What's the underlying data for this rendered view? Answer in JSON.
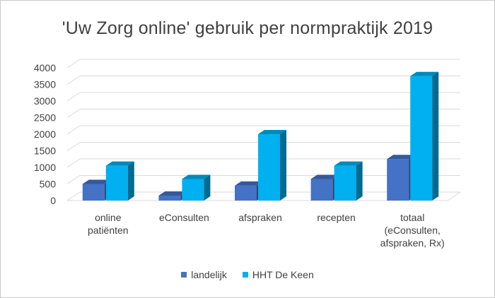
{
  "chart_data": {
    "type": "bar",
    "title": "'Uw Zorg online' gebruik per normpraktijk 2019",
    "categories": [
      [
        "online",
        "patiënten"
      ],
      [
        "eConsulten"
      ],
      [
        "afspraken"
      ],
      [
        "recepten"
      ],
      [
        "totaal",
        "(eConsulten,",
        "afspraken, Rx)"
      ]
    ],
    "series": [
      {
        "name": "landelijk",
        "color": "#4472C4",
        "values": [
          500,
          150,
          450,
          650,
          1250
        ]
      },
      {
        "name": "HHT De Keen",
        "color": "#00B0F0",
        "values": [
          1050,
          650,
          2000,
          1050,
          3750
        ]
      }
    ],
    "yticks": [
      0,
      500,
      1000,
      1500,
      2000,
      2500,
      3000,
      3500,
      4000
    ],
    "ylim": [
      0,
      4000
    ],
    "grid": true,
    "legend": "bottom",
    "three_d": true
  }
}
